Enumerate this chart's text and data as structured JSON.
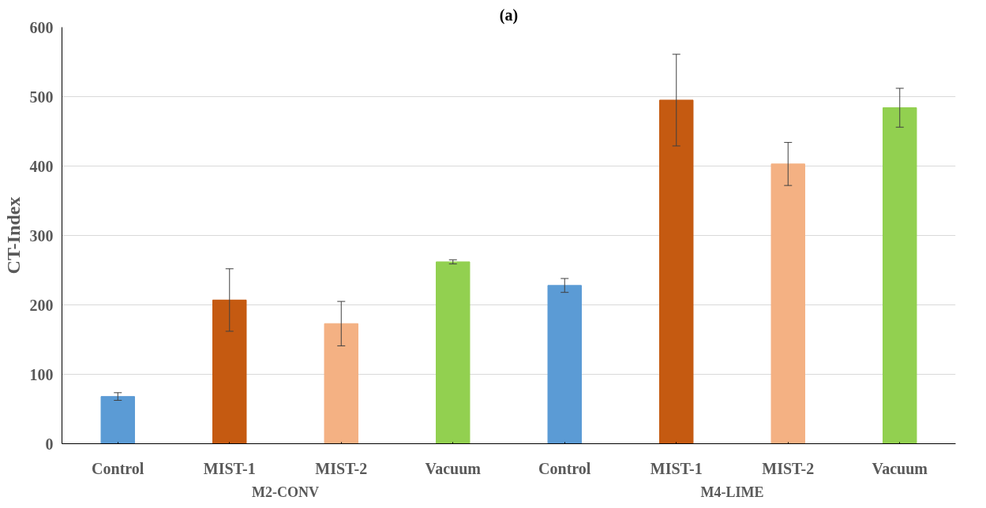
{
  "chart_data": {
    "type": "bar",
    "title": "(a)",
    "ylabel": "CT-Index",
    "categories": [
      "Control",
      "MIST-1",
      "MIST-2",
      "Vacuum",
      "Control",
      "MIST-1",
      "MIST-2",
      "Vacuum"
    ],
    "values": [
      68,
      207,
      173,
      262,
      228,
      495,
      403,
      484
    ],
    "errors": [
      5.5,
      45,
      32,
      3,
      10,
      66,
      31,
      28
    ],
    "colors": [
      "#5b9bd5",
      "#c55a11",
      "#f4b183",
      "#92d050",
      "#5b9bd5",
      "#c55a11",
      "#f4b183",
      "#92d050"
    ],
    "annotations": [
      "M2-CONV",
      "M4-LIME"
    ],
    "ylim": [
      0,
      600
    ],
    "yticks": [
      0,
      100,
      200,
      300,
      400,
      500,
      600
    ],
    "grid": "y"
  }
}
